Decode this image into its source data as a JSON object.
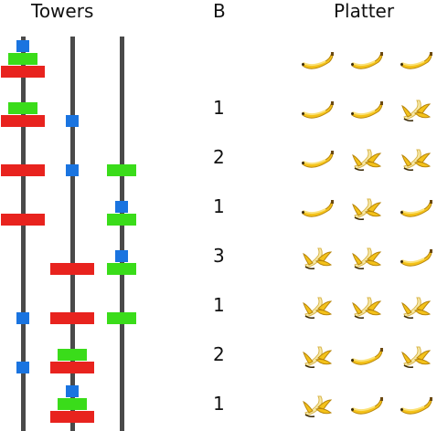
{
  "headers": {
    "towers": "Towers",
    "b": "B",
    "platter": "Platter"
  },
  "colors": {
    "small": "#1a74e0",
    "medium": "#3adc1a",
    "large": "#e8231e",
    "peg": "#4a4a4a"
  },
  "rows": [
    {
      "b": "",
      "pegs": [
        [
          "large",
          "medium",
          "small"
        ],
        [],
        []
      ],
      "platter": [
        "whole",
        "whole",
        "whole"
      ]
    },
    {
      "b": "1",
      "pegs": [
        [
          "large",
          "medium"
        ],
        [
          "small"
        ],
        []
      ],
      "platter": [
        "whole",
        "whole",
        "peeled"
      ]
    },
    {
      "b": "2",
      "pegs": [
        [
          "large"
        ],
        [
          "small"
        ],
        [
          "medium"
        ]
      ],
      "platter": [
        "whole",
        "peeled",
        "peeled"
      ]
    },
    {
      "b": "1",
      "pegs": [
        [
          "large"
        ],
        [],
        [
          "medium",
          "small"
        ]
      ],
      "platter": [
        "whole",
        "peeled",
        "whole"
      ]
    },
    {
      "b": "3",
      "pegs": [
        [],
        [
          "large"
        ],
        [
          "medium",
          "small"
        ]
      ],
      "platter": [
        "peeled",
        "peeled",
        "whole"
      ]
    },
    {
      "b": "1",
      "pegs": [
        [
          "small"
        ],
        [
          "large"
        ],
        [
          "medium"
        ]
      ],
      "platter": [
        "peeled",
        "peeled",
        "peeled"
      ]
    },
    {
      "b": "2",
      "pegs": [
        [
          "small"
        ],
        [
          "large",
          "medium"
        ],
        []
      ],
      "platter": [
        "peeled",
        "whole",
        "peeled"
      ]
    },
    {
      "b": "1",
      "pegs": [
        [],
        [
          "large",
          "medium",
          "small"
        ],
        []
      ],
      "platter": [
        "peeled",
        "whole",
        "whole"
      ]
    }
  ]
}
